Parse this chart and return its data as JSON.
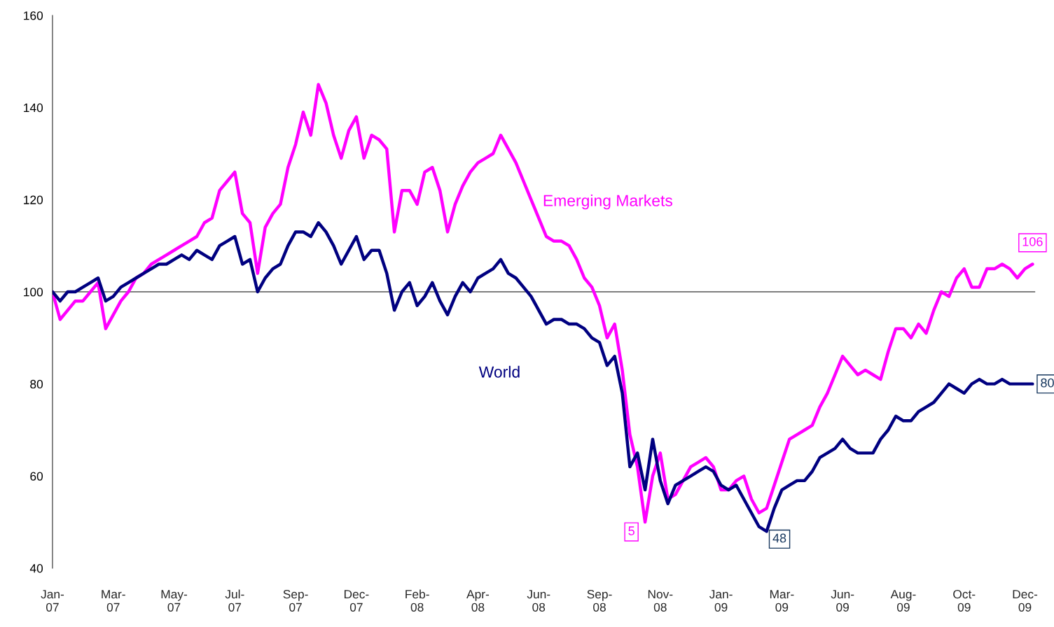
{
  "chart_data": {
    "type": "line",
    "categories": [
      "Jan-\n07",
      null,
      null,
      null,
      null,
      null,
      null,
      null,
      "Mar-\n07",
      null,
      null,
      null,
      null,
      null,
      null,
      null,
      "May-\n07",
      null,
      null,
      null,
      null,
      null,
      null,
      null,
      "Jul-\n07",
      null,
      null,
      null,
      null,
      null,
      null,
      null,
      "Sep-\n07",
      null,
      null,
      null,
      null,
      null,
      null,
      null,
      "Dec-\n07",
      null,
      null,
      null,
      null,
      null,
      null,
      null,
      "Feb-\n08",
      null,
      null,
      null,
      null,
      null,
      null,
      null,
      "Apr-\n08",
      null,
      null,
      null,
      null,
      null,
      null,
      null,
      "Jun-\n08",
      null,
      null,
      null,
      null,
      null,
      null,
      null,
      "Sep-\n08",
      null,
      null,
      null,
      null,
      null,
      null,
      null,
      "Nov-\n08",
      null,
      null,
      null,
      null,
      null,
      null,
      null,
      "Jan-\n09",
      null,
      null,
      null,
      null,
      null,
      null,
      null,
      "Mar-\n09",
      null,
      null,
      null,
      null,
      null,
      null,
      null,
      "Jun-\n09",
      null,
      null,
      null,
      null,
      null,
      null,
      null,
      "Aug-\n09",
      null,
      null,
      null,
      null,
      null,
      null,
      null,
      "Oct-\n09",
      null,
      null,
      null,
      null,
      null,
      null,
      null,
      "Dec-\n09",
      null
    ],
    "ylim": [
      40,
      160
    ],
    "yticks": [
      40,
      60,
      80,
      100,
      120,
      140,
      160
    ],
    "grid": false,
    "legend": false,
    "ref_lines": [
      {
        "axis": "y",
        "value": 100,
        "color": "#000000"
      }
    ],
    "series": [
      {
        "name": "Emerging Markets",
        "color": "#ff00ff",
        "values": [
          100,
          94,
          96,
          98,
          98,
          100,
          102,
          92,
          95,
          98,
          100,
          103,
          104,
          106,
          107,
          108,
          109,
          110,
          111,
          112,
          115,
          116,
          122,
          124,
          126,
          117,
          115,
          104,
          114,
          117,
          119,
          127,
          132,
          139,
          134,
          145,
          141,
          134,
          129,
          135,
          138,
          129,
          134,
          133,
          131,
          113,
          122,
          122,
          119,
          126,
          127,
          122,
          113,
          119,
          123,
          126,
          128,
          129,
          130,
          134,
          131,
          128,
          124,
          120,
          116,
          112,
          111,
          111,
          110,
          107,
          103,
          101,
          97,
          90,
          93,
          83,
          69,
          62,
          50,
          60,
          65,
          55,
          56,
          59,
          62,
          63,
          64,
          62,
          57,
          57,
          59,
          60,
          55,
          52,
          53,
          58,
          63,
          68,
          69,
          70,
          71,
          75,
          78,
          82,
          86,
          84,
          82,
          83,
          82,
          81,
          87,
          92,
          92,
          90,
          93,
          91,
          96,
          100,
          99,
          103,
          105,
          101,
          101,
          105,
          105,
          106,
          105,
          103,
          105,
          106
        ]
      },
      {
        "name": "World",
        "color": "#000080",
        "values": [
          100,
          98,
          100,
          100,
          101,
          102,
          103,
          98,
          99,
          101,
          102,
          103,
          104,
          105,
          106,
          106,
          107,
          108,
          107,
          109,
          108,
          107,
          110,
          111,
          112,
          106,
          107,
          100,
          103,
          105,
          106,
          110,
          113,
          113,
          112,
          115,
          113,
          110,
          106,
          109,
          112,
          107,
          109,
          109,
          104,
          96,
          100,
          102,
          97,
          99,
          102,
          98,
          95,
          99,
          102,
          100,
          103,
          104,
          105,
          107,
          104,
          103,
          101,
          99,
          96,
          93,
          94,
          94,
          93,
          93,
          92,
          90,
          89,
          84,
          86,
          78,
          62,
          65,
          57,
          68,
          59,
          54,
          58,
          59,
          60,
          61,
          62,
          61,
          58,
          57,
          58,
          55,
          52,
          49,
          48,
          53,
          57,
          58,
          59,
          59,
          61,
          64,
          65,
          66,
          68,
          66,
          65,
          65,
          65,
          68,
          70,
          73,
          72,
          72,
          74,
          75,
          76,
          78,
          80,
          79,
          78,
          80,
          81,
          80,
          80,
          81,
          80,
          80,
          80,
          80
        ]
      }
    ],
    "annotations": [
      "106",
      "80",
      "48",
      "5"
    ]
  }
}
